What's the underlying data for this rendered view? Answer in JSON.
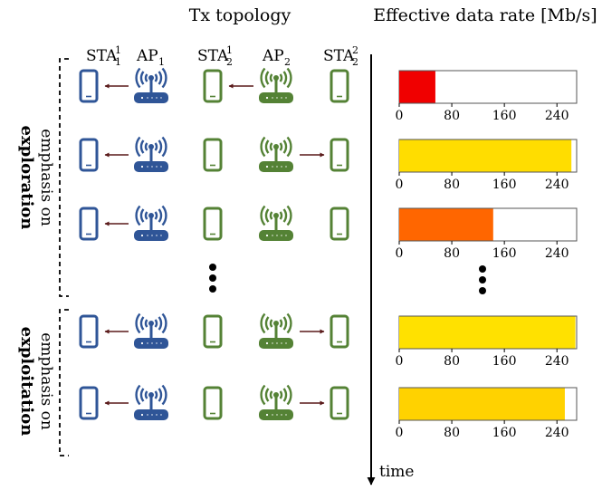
{
  "header": {
    "tx_topology": "Tx topology",
    "rate_title": "Effective data rate [Mb/s]"
  },
  "columns": [
    {
      "base": "STA",
      "sup": "1",
      "sub": "1"
    },
    {
      "base": "AP",
      "sup": "",
      "sub": "1"
    },
    {
      "base": "STA",
      "sup": "1",
      "sub": "2"
    },
    {
      "base": "AP",
      "sup": "",
      "sub": "2"
    },
    {
      "base": "STA",
      "sup": "2",
      "sub": "2"
    }
  ],
  "phases": [
    {
      "line1": "emphasis on",
      "line2": "exploration"
    },
    {
      "line1": "emphasis on",
      "line2": "exploitation"
    }
  ],
  "time_label": "time",
  "colors": {
    "network1": "#2f5597",
    "network2": "#548235",
    "arrow": "#5a1a1a"
  },
  "chart_data": {
    "type": "bar",
    "orientation": "horizontal",
    "xlim": [
      0,
      270
    ],
    "ticks": [
      0,
      80,
      160,
      240
    ],
    "tick_labels": [
      "0",
      "80",
      "160",
      "240"
    ],
    "rows": [
      {
        "value": 55,
        "color": "#f00000",
        "ap2_target": "STA_2^1"
      },
      {
        "value": 262,
        "color": "#ffdd00",
        "ap2_target": "STA_2^2"
      },
      {
        "value": 143,
        "color": "#ff6600",
        "ap2_target": "none"
      },
      {
        "value": 268,
        "color": "#ffe100",
        "ap2_target": "STA_2^2"
      },
      {
        "value": 252,
        "color": "#ffd200",
        "ap2_target": "STA_2^2"
      }
    ]
  }
}
